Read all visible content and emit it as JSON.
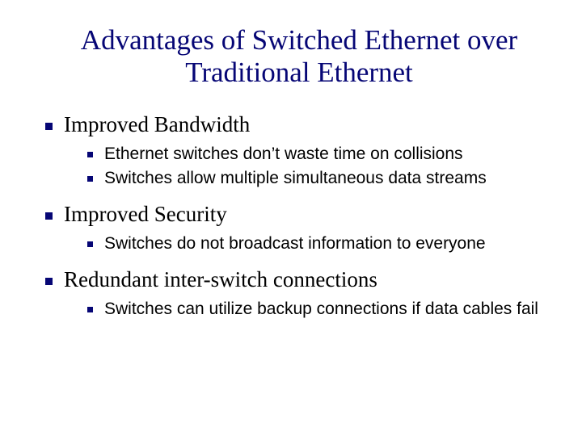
{
  "title": "Advantages of Switched Ethernet over Traditional Ethernet",
  "bullet_color": "#060675",
  "title_color": "#060675",
  "text_color": "#000000",
  "background_color": "#ffffff",
  "fonts": {
    "title_family": "Times New Roman",
    "level1_family": "Times New Roman",
    "level2_family": "Tahoma",
    "title_size_pt": 35,
    "level1_size_pt": 27,
    "level2_size_pt": 21
  },
  "items": [
    {
      "label": "Improved Bandwidth",
      "children": [
        {
          "label": "Ethernet switches don’t waste time on collisions"
        },
        {
          "label": "Switches allow multiple simultaneous data streams"
        }
      ]
    },
    {
      "label": "Improved Security",
      "children": [
        {
          "label": "Switches do not broadcast information to everyone"
        }
      ]
    },
    {
      "label": "Redundant inter-switch connections",
      "children": [
        {
          "label": "Switches can utilize backup connections if data cables fail"
        }
      ]
    }
  ]
}
